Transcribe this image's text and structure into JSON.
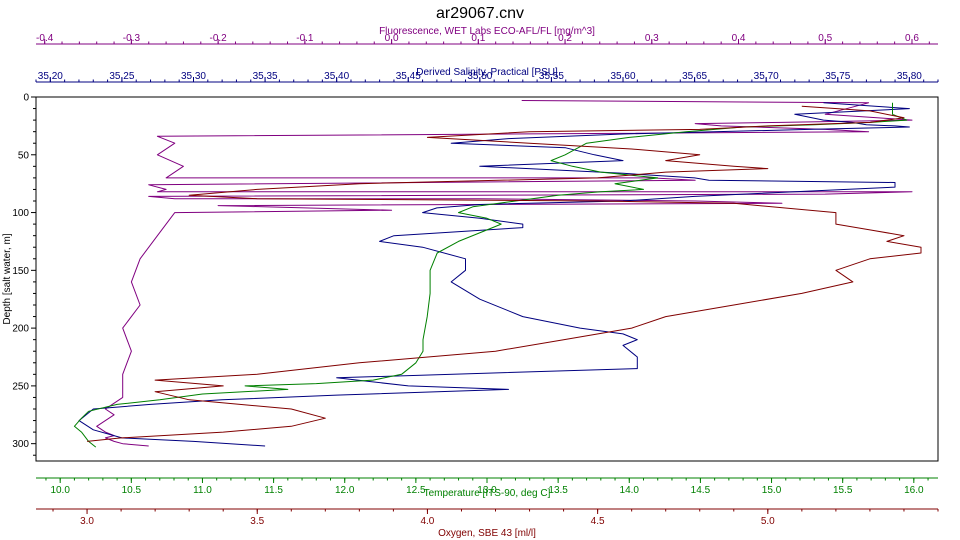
{
  "chart_data": {
    "type": "line",
    "title": "ar29067.cnv",
    "grid": false,
    "legend": "none",
    "y_axis": {
      "label": "Depth [salt water, m]",
      "lim": [
        0,
        315
      ],
      "inverted": true,
      "ticks": [
        "0",
        "50",
        "100",
        "150",
        "200",
        "250",
        "300"
      ],
      "color": "#000000"
    },
    "x_axes": [
      {
        "id": "fluorescence",
        "position": "top-outer",
        "label": "Fluorescence, WET Labs ECO-AFL/FL [mg/m^3]",
        "lim": [
          -0.41,
          0.63
        ],
        "ticks": [
          "-0.4",
          "-0.3",
          "-0.2",
          "-0.1",
          "0.0",
          "0.1",
          "0.2",
          "0.3",
          "0.4",
          "0.5",
          "0.6"
        ],
        "color": "#800080"
      },
      {
        "id": "salinity",
        "position": "top-inner",
        "label": "Derived Salinity, Practical [PSU]",
        "lim": [
          35.19,
          35.82
        ],
        "ticks": [
          "35.20",
          "35.25",
          "35.30",
          "35.35",
          "35.40",
          "35.45",
          "35.50",
          "35.55",
          "35.60",
          "35.65",
          "35.70",
          "35.75",
          "35.80"
        ],
        "color": "#000080"
      },
      {
        "id": "temperature",
        "position": "bottom-inner",
        "label": "Temperature [ITS-90, deg C]",
        "lim": [
          9.83,
          16.17
        ],
        "ticks": [
          "10.0",
          "10.5",
          "11.0",
          "11.5",
          "12.0",
          "12.5",
          "13.0",
          "13.5",
          "14.0",
          "14.5",
          "15.0",
          "15.5",
          "16.0"
        ],
        "color": "#008000"
      },
      {
        "id": "oxygen",
        "position": "bottom-outer",
        "label": "Oxygen, SBE 43 [ml/l]",
        "lim": [
          2.85,
          5.5
        ],
        "ticks": [
          "3.0",
          "3.5",
          "4.0",
          "4.5",
          "5.0"
        ],
        "color": "#800000"
      }
    ],
    "series": [
      {
        "axis": "fluorescence",
        "color": "#800080",
        "x": [
          0.15,
          0.55,
          0.5,
          0.6,
          0.45,
          0.35,
          0.38,
          0.42,
          0.5,
          0.55,
          -0.27,
          -0.25,
          -0.27,
          -0.24,
          -0.26,
          0.3,
          0.35,
          -0.28,
          -0.26,
          -0.27,
          0.6,
          0.5,
          -0.28,
          -0.25,
          0.1,
          0.35,
          0.45,
          -0.2,
          -0.1,
          0.0,
          -0.25,
          -0.27,
          -0.29,
          -0.3,
          -0.29,
          -0.31,
          -0.3,
          -0.31,
          -0.31,
          -0.32,
          -0.33,
          -0.32,
          -0.33,
          -0.34,
          -0.33,
          -0.32,
          -0.33,
          -0.32,
          -0.31,
          -0.28
        ],
        "y": [
          3,
          5,
          15,
          20,
          22,
          23,
          25,
          26,
          28,
          30,
          34,
          40,
          50,
          60,
          70,
          70,
          72,
          76,
          80,
          82,
          82,
          84,
          86,
          88,
          88,
          90,
          92,
          94,
          96,
          98,
          100,
          120,
          140,
          160,
          180,
          200,
          220,
          240,
          260,
          265,
          270,
          275,
          280,
          285,
          290,
          293,
          295,
          298,
          300,
          302
        ]
      },
      {
        "axis": "salinity",
        "color": "#000080",
        "x": [
          35.74,
          35.8,
          35.72,
          35.74,
          35.76,
          35.77,
          35.79,
          35.8,
          35.73,
          35.6,
          35.52,
          35.48,
          35.56,
          35.58,
          35.6,
          35.5,
          35.6,
          35.65,
          35.66,
          35.79,
          35.79,
          35.72,
          35.65,
          35.6,
          35.5,
          35.47,
          35.46,
          35.5,
          35.53,
          35.53,
          35.44,
          35.43,
          35.46,
          35.49,
          35.49,
          35.48,
          35.5,
          35.53,
          35.57,
          35.6,
          35.61,
          35.6,
          35.61,
          35.61,
          35.4,
          35.45,
          35.52,
          35.4,
          35.32,
          35.27,
          35.23,
          35.22,
          35.23,
          35.25,
          35.3,
          35.35
        ],
        "y": [
          5,
          10,
          15,
          20,
          22,
          24,
          25,
          26,
          28,
          32,
          36,
          40,
          44,
          50,
          55,
          60,
          66,
          70,
          72,
          74,
          78,
          82,
          86,
          90,
          93,
          96,
          100,
          105,
          110,
          113,
          120,
          125,
          130,
          140,
          150,
          160,
          175,
          190,
          200,
          205,
          210,
          215,
          225,
          235,
          243,
          250,
          253,
          258,
          262,
          266,
          270,
          280,
          288,
          295,
          298,
          302
        ]
      },
      {
        "axis": "temperature",
        "color": "#008000",
        "x": [
          15.85,
          15.85,
          15.95,
          15.7,
          15.3,
          14.8,
          14.4,
          14.0,
          13.7,
          13.55,
          13.45,
          13.6,
          13.8,
          14.2,
          13.9,
          14.1,
          13.8,
          13.5,
          13.2,
          12.9,
          12.8,
          13.0,
          13.1,
          13.0,
          12.8,
          12.65,
          12.6,
          12.6,
          12.58,
          12.55,
          12.55,
          12.5,
          12.4,
          12.2,
          11.8,
          11.3,
          11.6,
          11.0,
          10.7,
          10.4,
          10.2,
          10.15,
          10.1,
          10.15,
          10.2,
          10.25
        ],
        "y": [
          5,
          15,
          20,
          22,
          24,
          26,
          30,
          35,
          40,
          50,
          55,
          60,
          65,
          70,
          75,
          80,
          82,
          85,
          90,
          95,
          100,
          105,
          110,
          115,
          125,
          135,
          150,
          170,
          190,
          210,
          220,
          230,
          240,
          245,
          248,
          250,
          253,
          257,
          262,
          266,
          272,
          278,
          285,
          290,
          298,
          303
        ]
      },
      {
        "axis": "oxygen",
        "color": "#800000",
        "x": [
          5.1,
          5.3,
          5.4,
          5.3,
          5.0,
          4.8,
          4.3,
          4.0,
          4.3,
          4.6,
          4.8,
          4.7,
          4.9,
          5.0,
          4.7,
          4.5,
          3.8,
          3.5,
          3.3,
          3.5,
          4.5,
          4.9,
          5.2,
          5.2,
          5.3,
          5.4,
          5.35,
          5.45,
          5.45,
          5.3,
          5.2,
          5.25,
          5.1,
          4.9,
          4.7,
          4.6,
          4.4,
          4.2,
          3.8,
          3.5,
          3.2,
          3.4,
          3.2,
          3.3,
          3.6,
          3.7,
          3.6,
          3.4,
          3.1,
          3.0
        ],
        "y": [
          8,
          12,
          18,
          22,
          25,
          28,
          30,
          35,
          40,
          45,
          50,
          55,
          60,
          62,
          65,
          70,
          75,
          80,
          85,
          88,
          90,
          92,
          100,
          110,
          115,
          120,
          125,
          130,
          135,
          140,
          150,
          160,
          170,
          180,
          190,
          200,
          210,
          220,
          230,
          240,
          245,
          250,
          255,
          262,
          270,
          278,
          285,
          290,
          295,
          298
        ]
      }
    ]
  }
}
